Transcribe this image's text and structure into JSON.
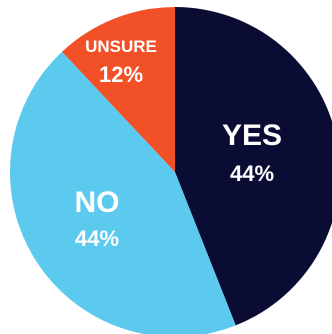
{
  "chart_data": {
    "type": "pie",
    "slices": [
      {
        "label": "YES",
        "value": 44,
        "value_text": "44%",
        "color": "#0b0c33"
      },
      {
        "label": "NO",
        "value": 44,
        "value_text": "44%",
        "color": "#5ccaee"
      },
      {
        "label": "UNSURE",
        "value": 12,
        "value_text": "12%",
        "color": "#f25027"
      }
    ],
    "start": "12 o'clock",
    "direction": "clockwise",
    "legend": "none",
    "labels": "inside slices"
  }
}
